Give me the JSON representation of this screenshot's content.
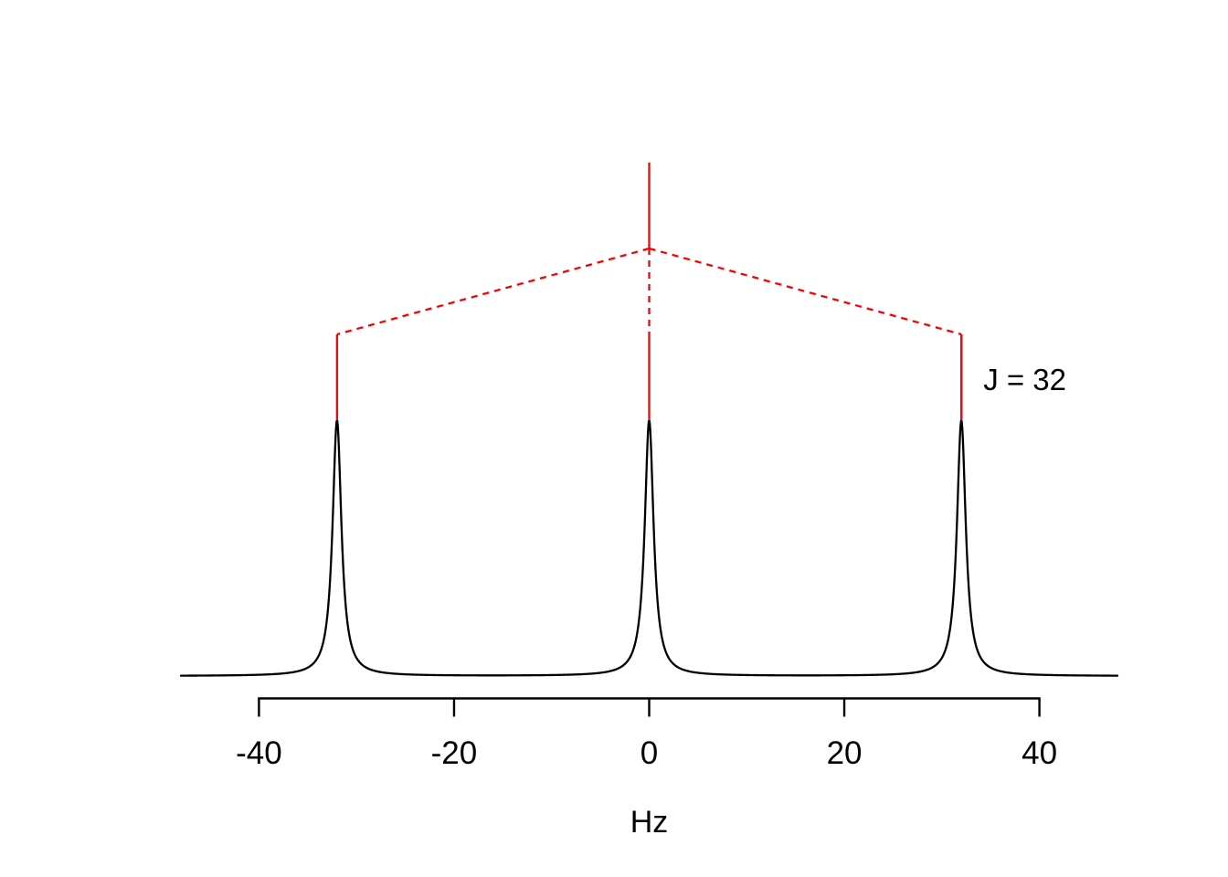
{
  "chart_data": {
    "type": "line",
    "title": "",
    "xlabel": "Hz",
    "x_ticks": [
      -40,
      -20,
      0,
      20,
      40
    ],
    "x_tick_labels": [
      "-40",
      "-20",
      "0",
      "20",
      "40"
    ],
    "xlim": [
      -48,
      48
    ],
    "axis_range_hz": [
      -40,
      40
    ],
    "grid": false,
    "legend": "none",
    "annotation": "J = 32",
    "j_coupling_hz": 32,
    "multiplet": "1:1:1 triplet",
    "lineshape": "lorentzian",
    "hwhm_hz": 0.55,
    "peaks_hz": [
      -32,
      0,
      32
    ],
    "peak_relative_heights": [
      1,
      1,
      1
    ],
    "spectrum_color": "#000000",
    "coupling_tree": {
      "origin_hz": 0,
      "branches_hz": [
        -32,
        0,
        32
      ],
      "color": "#FF0000"
    }
  }
}
